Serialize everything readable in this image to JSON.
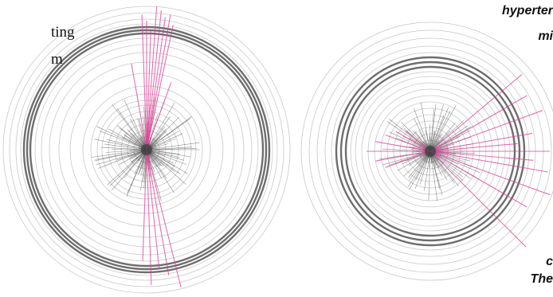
{
  "text_fragments": {
    "left_line_1": "ting",
    "left_line_2": "m",
    "right_line_1": "hyperter",
    "right_line_2": "mi",
    "right_line_3": "c",
    "right_line_4": "The"
  },
  "colors": {
    "background": "#ffffff",
    "ring": "#9a9a9a",
    "ring_dark": "#555555",
    "spoke": "#333333",
    "highlight": "#e0409a"
  },
  "diagrams": [
    {
      "name": "left-radial-diagram",
      "ring_radii": [
        16,
        24,
        32,
        40,
        48,
        56,
        62,
        70,
        80,
        96,
        110,
        122,
        132,
        140,
        146,
        150,
        154,
        158,
        164,
        172,
        180
      ],
      "dark_ring_radii": [
        146,
        150,
        154
      ],
      "highlight_angles_deg": [
        -78,
        -80,
        -82,
        -84,
        -86,
        -88,
        -90,
        -92,
        76,
        80,
        84,
        88,
        92,
        -70,
        -100
      ],
      "highlight_lengths": [
        160,
        172,
        168,
        176,
        180,
        150,
        162,
        170,
        178,
        160,
        150,
        170,
        140,
        90,
        110
      ]
    },
    {
      "name": "right-radial-diagram",
      "ring_radii": [
        14,
        22,
        30,
        38,
        46,
        54,
        62,
        70,
        78,
        86,
        94,
        100,
        106,
        112,
        118,
        124,
        132,
        142,
        152,
        162
      ],
      "dark_ring_radii": [
        106,
        112,
        118
      ],
      "highlight_angles_deg": [
        -40,
        -30,
        -20,
        -10,
        -5,
        0,
        5,
        10,
        20,
        30,
        45,
        160,
        170,
        180,
        190,
        200,
        210,
        220
      ],
      "highlight_lengths": [
        150,
        140,
        150,
        130,
        110,
        150,
        130,
        150,
        160,
        140,
        170,
        60,
        70,
        80,
        70,
        60,
        50,
        40
      ]
    }
  ]
}
